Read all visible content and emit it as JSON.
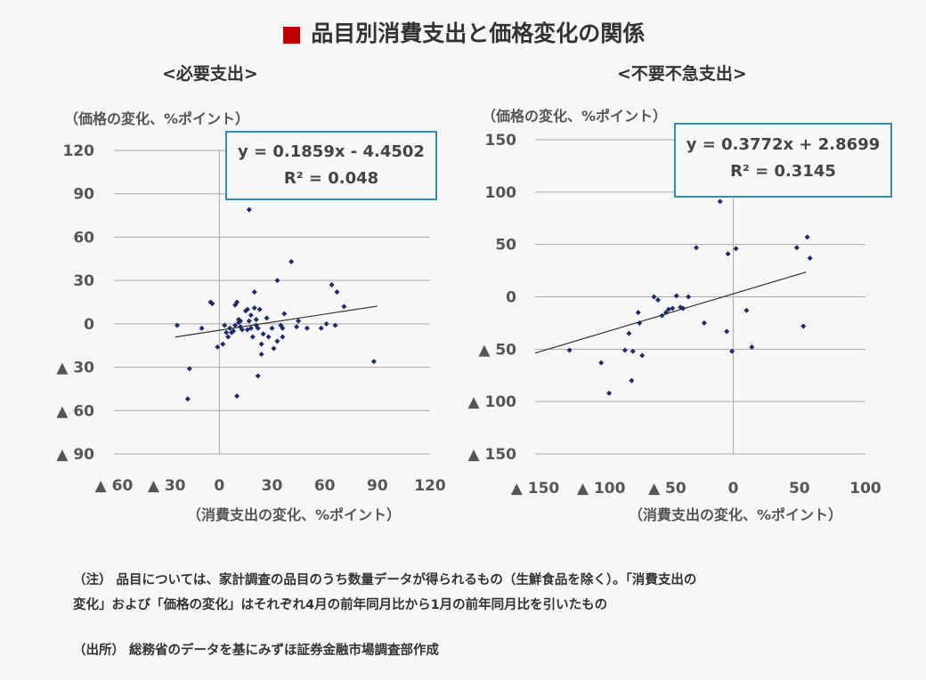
{
  "title": "品目別消費支出と価格変化の関係",
  "title_marker": "■",
  "notes": {
    "line1": "（注） 品目については、家計調査の品目のうち数量データが得られるもの（生鮮食品を除く）。「消費支出の",
    "line2": "変化」および「価格の変化」はそれぞれ4月の前年同月比から1月の前年同月比を引いたもの",
    "source": "（出所） 総務省のデータを基にみずほ証券金融市場調査部作成"
  },
  "chart_data": [
    {
      "type": "scatter",
      "title": "<必要支出>",
      "ylabel": "（価格の変化、%ポイント）",
      "xlabel": "（消費支出の変化、%ポイント）",
      "xlim": [
        -60,
        120
      ],
      "ylim": [
        -90,
        120
      ],
      "xticks": [
        -60,
        -30,
        0,
        30,
        60,
        90,
        120
      ],
      "xtick_labels": [
        "▲ 60",
        "▲ 30",
        "0",
        "30",
        "60",
        "90",
        "120"
      ],
      "yticks": [
        120,
        90,
        60,
        30,
        0,
        -30,
        -60,
        -90
      ],
      "ytick_labels": [
        "120",
        "90",
        "60",
        "30",
        "0",
        "▲ 30",
        "▲ 60",
        "▲ 90"
      ],
      "grid": true,
      "trendline": {
        "slope": 0.1859,
        "intercept": -4.4502,
        "x_range": [
          -25,
          90
        ]
      },
      "equation": "y = 0.1859x - 4.4502",
      "r2": "R² = 0.048",
      "marker_color": "#1f2a6b",
      "points": [
        [
          -24,
          -1
        ],
        [
          -17,
          -31
        ],
        [
          -18,
          -52
        ],
        [
          -10,
          -3
        ],
        [
          -5,
          15
        ],
        [
          -4,
          14
        ],
        [
          -1,
          -16
        ],
        [
          2,
          -14
        ],
        [
          3,
          -1
        ],
        [
          4,
          -6
        ],
        [
          5,
          -9
        ],
        [
          6,
          -3
        ],
        [
          7,
          -6
        ],
        [
          8,
          -5
        ],
        [
          9,
          -1
        ],
        [
          9,
          13
        ],
        [
          10,
          -50
        ],
        [
          10,
          15
        ],
        [
          11,
          1
        ],
        [
          11,
          3
        ],
        [
          12,
          2
        ],
        [
          12,
          -2
        ],
        [
          13,
          -4
        ],
        [
          15,
          9
        ],
        [
          16,
          10
        ],
        [
          16,
          -4
        ],
        [
          17,
          2
        ],
        [
          17,
          79
        ],
        [
          18,
          6
        ],
        [
          18,
          -3
        ],
        [
          19,
          -9
        ],
        [
          20,
          11
        ],
        [
          20,
          22
        ],
        [
          21,
          -1
        ],
        [
          21,
          3
        ],
        [
          22,
          -3
        ],
        [
          22,
          -36
        ],
        [
          23,
          10
        ],
        [
          24,
          -21
        ],
        [
          24,
          -14
        ],
        [
          25,
          -7
        ],
        [
          27,
          4
        ],
        [
          28,
          -9
        ],
        [
          30,
          -3
        ],
        [
          31,
          -17
        ],
        [
          33,
          -12
        ],
        [
          33,
          30
        ],
        [
          35,
          -1
        ],
        [
          36,
          -3
        ],
        [
          36,
          -9
        ],
        [
          37,
          7
        ],
        [
          41,
          43
        ],
        [
          44,
          -2
        ],
        [
          45,
          2
        ],
        [
          50,
          -3
        ],
        [
          58,
          -3
        ],
        [
          61,
          0
        ],
        [
          64,
          27
        ],
        [
          66,
          -1
        ],
        [
          67,
          22
        ],
        [
          71,
          12
        ],
        [
          88,
          -26
        ]
      ]
    },
    {
      "type": "scatter",
      "title": "<不要不急支出>",
      "ylabel": "（価格の変化、%ポイント）",
      "xlabel": "（消費支出の変化、%ポイント）",
      "xlim": [
        -150,
        100
      ],
      "ylim": [
        -150,
        150
      ],
      "xticks": [
        -150,
        -100,
        -50,
        0,
        50,
        100
      ],
      "xtick_labels": [
        "▲ 150",
        "▲ 100",
        "▲ 50",
        "0",
        "50",
        "100"
      ],
      "yticks": [
        150,
        100,
        50,
        0,
        -50,
        -100,
        -150
      ],
      "ytick_labels": [
        "150",
        "100",
        "50",
        "0",
        "▲ 50",
        "▲ 100",
        "▲ 150"
      ],
      "grid": true,
      "trendline": {
        "slope": 0.3772,
        "intercept": 2.8699,
        "x_range": [
          -150,
          55
        ]
      },
      "equation": "y = 0.3772x + 2.8699",
      "r2": "R² = 0.3145",
      "marker_color": "#1f2a6b",
      "points": [
        [
          -124,
          -51
        ],
        [
          -100,
          -63
        ],
        [
          -94,
          -92
        ],
        [
          -82,
          -51
        ],
        [
          -79,
          -35
        ],
        [
          -77,
          -80
        ],
        [
          -76,
          -52
        ],
        [
          -72,
          -15
        ],
        [
          -71,
          -25
        ],
        [
          -69,
          -56
        ],
        [
          -60,
          0
        ],
        [
          -57,
          -3
        ],
        [
          -54,
          -18
        ],
        [
          -51,
          -15
        ],
        [
          -49,
          -12
        ],
        [
          -46,
          -11
        ],
        [
          -43,
          1
        ],
        [
          -40,
          -10
        ],
        [
          -38,
          -11
        ],
        [
          -34,
          0
        ],
        [
          -28,
          47
        ],
        [
          -22,
          -25
        ],
        [
          -10,
          91
        ],
        [
          -5,
          -33
        ],
        [
          -4,
          41
        ],
        [
          -1,
          -52
        ],
        [
          2,
          46
        ],
        [
          10,
          -13
        ],
        [
          14,
          -48
        ],
        [
          48,
          47
        ],
        [
          53,
          -28
        ],
        [
          56,
          57
        ],
        [
          58,
          37
        ]
      ]
    }
  ]
}
